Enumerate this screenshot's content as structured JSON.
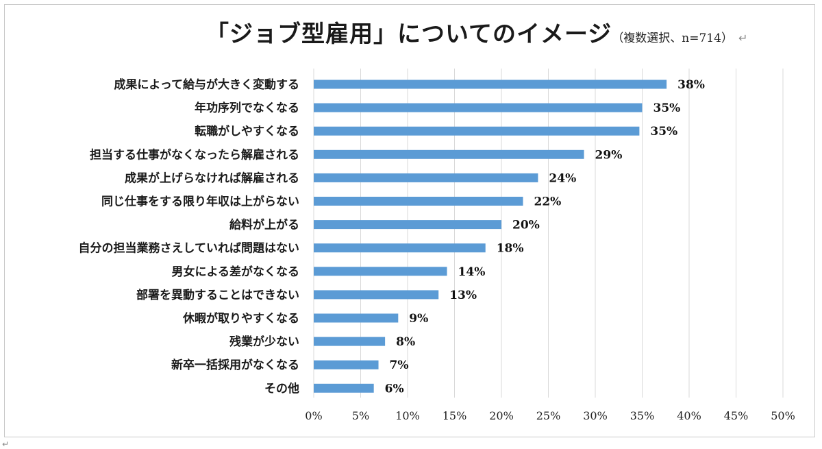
{
  "title": "「ジョブ型雇用」についてのイメージ",
  "subtitle": "（複数選択、n=714）",
  "return_mark": "↵",
  "corner_mark": "↵",
  "colors": {
    "bar": "#5b9bd5",
    "grid": "#d9d9d9",
    "frame": "#c8c8c8"
  },
  "chart_data": {
    "type": "bar",
    "orientation": "horizontal",
    "categories": [
      "成果によって給与が大きく変動する",
      "年功序列でなくなる",
      "転職がしやすくなる",
      "担当する仕事がなくなったら解雇される",
      "成果が上げらなければ解雇される",
      "同じ仕事をする限り年収は上がらない",
      "給料が上がる",
      "自分の担当業務さえしていれば問題はない",
      "男女による差がなくなる",
      "部署を異動することはできない",
      "休暇が取りやすくなる",
      "残業が少ない",
      "新卒一括採用がなくなる",
      "その他"
    ],
    "values": [
      37.6,
      35.0,
      34.7,
      28.8,
      23.9,
      22.3,
      20.0,
      18.3,
      14.2,
      13.3,
      9.0,
      7.6,
      6.9,
      6.4
    ],
    "data_labels": [
      "38%",
      "35%",
      "35%",
      "29%",
      "24%",
      "22%",
      "20%",
      "18%",
      "14%",
      "13%",
      "9%",
      "8%",
      "7%",
      "6%"
    ],
    "xlim": [
      0,
      50
    ],
    "xticks": [
      0,
      5,
      10,
      15,
      20,
      25,
      30,
      35,
      40,
      45,
      50
    ],
    "xtick_labels": [
      "0%",
      "5%",
      "10%",
      "15%",
      "20%",
      "25%",
      "30%",
      "35%",
      "40%",
      "45%",
      "50%"
    ],
    "grid": "vertical",
    "legend": "none"
  }
}
